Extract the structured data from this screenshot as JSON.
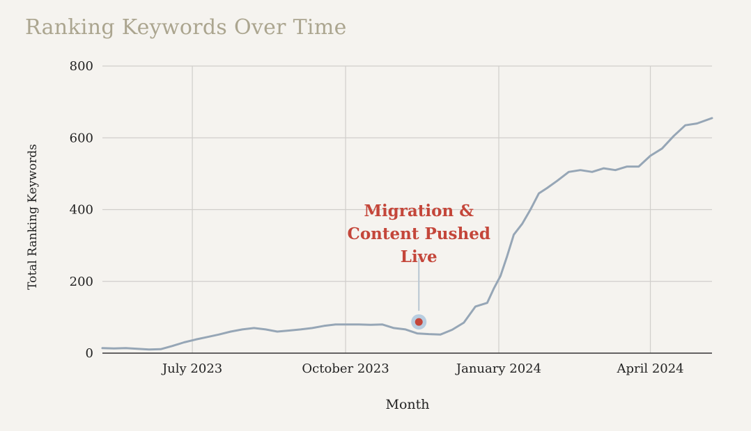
{
  "chart_data": {
    "type": "line",
    "title": "Ranking Keywords Over Time",
    "xlabel": "Month",
    "ylabel": "Total Ranking Keywords",
    "x_ticks": [
      "July 2023",
      "October 2023",
      "January 2024",
      "April 2024"
    ],
    "y_ticks": [
      "0",
      "200",
      "400",
      "600",
      "800"
    ],
    "ylim": [
      0,
      800
    ],
    "xlim": [
      "2023-05-08",
      "2024-05-08"
    ],
    "grid": true,
    "colors": {
      "line": "#96a6b6",
      "annotation": "#c4463a",
      "marker_halo": "#b8cde0",
      "grid": "#d0cecb"
    },
    "series": [
      {
        "x": [
          "2023-05-08",
          "2023-05-15",
          "2023-05-22",
          "2023-05-29",
          "2023-06-05",
          "2023-06-12",
          "2023-06-19",
          "2023-06-26",
          "2023-07-03",
          "2023-07-10",
          "2023-07-17",
          "2023-07-24",
          "2023-07-31",
          "2023-08-07",
          "2023-08-14",
          "2023-08-21",
          "2023-08-28",
          "2023-09-04",
          "2023-09-11",
          "2023-09-18",
          "2023-09-25",
          "2023-10-02",
          "2023-10-09",
          "2023-10-16",
          "2023-10-23",
          "2023-10-30",
          "2023-11-06",
          "2023-11-13",
          "2023-11-20",
          "2023-11-27",
          "2023-12-04",
          "2023-12-11",
          "2023-12-18",
          "2023-12-25",
          "2023-12-29",
          "2024-01-02",
          "2024-01-06",
          "2024-01-10",
          "2024-01-15",
          "2024-01-20",
          "2024-01-25",
          "2024-01-30",
          "2024-02-05",
          "2024-02-12",
          "2024-02-19",
          "2024-02-26",
          "2024-03-04",
          "2024-03-11",
          "2024-03-18",
          "2024-03-25",
          "2024-04-01",
          "2024-04-08",
          "2024-04-15",
          "2024-04-22",
          "2024-04-29",
          "2024-05-08"
        ],
        "values": [
          14,
          13,
          14,
          12,
          10,
          11,
          20,
          30,
          38,
          45,
          52,
          60,
          66,
          70,
          66,
          60,
          63,
          66,
          70,
          76,
          80,
          80,
          80,
          79,
          80,
          70,
          66,
          55,
          53,
          52,
          65,
          85,
          130,
          140,
          180,
          215,
          270,
          330,
          360,
          400,
          445,
          460,
          480,
          505,
          510,
          505,
          515,
          510,
          520,
          520,
          550,
          570,
          605,
          635,
          640,
          655
        ]
      }
    ],
    "annotation": {
      "label_lines": [
        "Migration &",
        "Content Pushed",
        "Live"
      ],
      "x": "2023-11-14",
      "y": 87
    }
  }
}
